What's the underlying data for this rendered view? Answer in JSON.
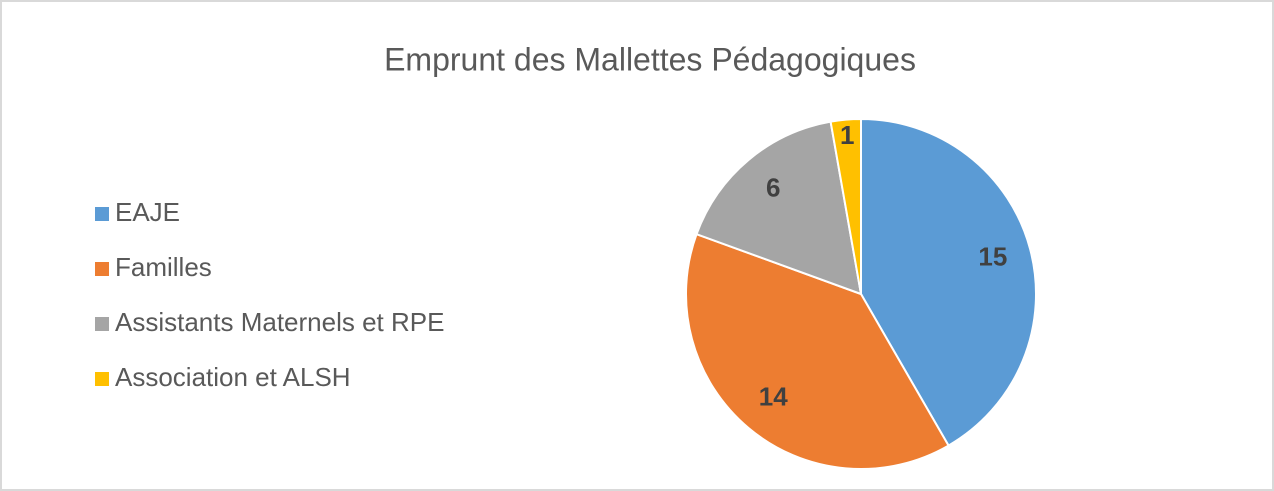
{
  "chart_data": {
    "type": "pie",
    "title": "Emprunt des Mallettes Pédagogiques",
    "categories": [
      "EAJE",
      "Familles",
      "Assistants Maternels et RPE",
      "Association et ALSH"
    ],
    "values": [
      15,
      14,
      6,
      1
    ],
    "colors": [
      "#5b9bd5",
      "#ed7d31",
      "#a5a5a5",
      "#ffc000"
    ],
    "legend": "left"
  }
}
